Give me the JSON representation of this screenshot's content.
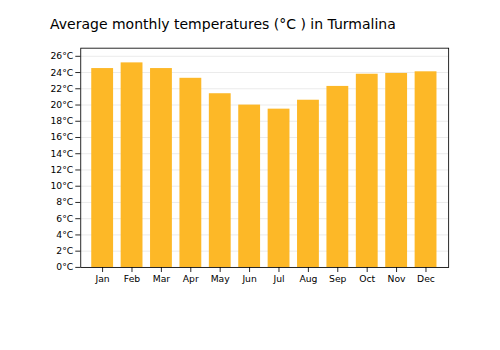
{
  "chart_data": {
    "type": "bar",
    "title": "Average monthly temperatures (°C ) in Turmalina",
    "categories": [
      "Jan",
      "Feb",
      "Mar",
      "Apr",
      "May",
      "Jun",
      "Jul",
      "Aug",
      "Sep",
      "Oct",
      "Nov",
      "Dec"
    ],
    "values": [
      24.5,
      25.2,
      24.5,
      23.3,
      21.4,
      20.0,
      19.5,
      20.6,
      22.3,
      23.8,
      23.9,
      24.1
    ],
    "color": "#FDB827",
    "ylim": [
      0,
      27
    ],
    "yticks": [
      {
        "value": 0,
        "label": "0°C"
      },
      {
        "value": 2,
        "label": "2°C"
      },
      {
        "value": 4,
        "label": "4°C"
      },
      {
        "value": 6,
        "label": "6°C"
      },
      {
        "value": 8,
        "label": "8°C"
      },
      {
        "value": 10,
        "label": "10°C"
      },
      {
        "value": 12,
        "label": "12°C"
      },
      {
        "value": 14,
        "label": "14°C"
      },
      {
        "value": 16,
        "label": "16°C"
      },
      {
        "value": 18,
        "label": "18°C"
      },
      {
        "value": 20,
        "label": "20°C"
      },
      {
        "value": 22,
        "label": "22°C"
      },
      {
        "value": 24,
        "label": "24°C"
      },
      {
        "value": 26,
        "label": "26°C"
      }
    ],
    "grid": true
  }
}
